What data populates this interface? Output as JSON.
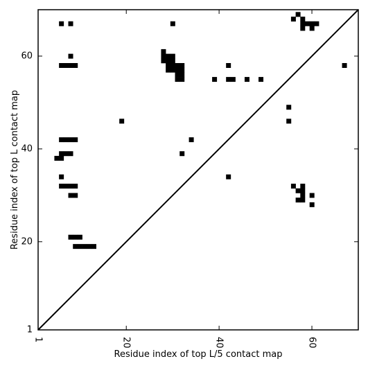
{
  "chart_data": {
    "type": "heatmap",
    "title": "",
    "xlabel": "Residue index of top L/5 contact map",
    "ylabel": "Residue index of top L contact map",
    "xlim": [
      1,
      70
    ],
    "ylim": [
      1,
      70
    ],
    "x_ticks": [
      1,
      20,
      40,
      60
    ],
    "y_ticks": [
      1,
      20,
      40,
      60
    ],
    "x_tick_labels": [
      "1",
      "20",
      "40",
      "60"
    ],
    "y_tick_labels": [
      "1",
      "20",
      "40",
      "60"
    ],
    "x_tick_rotation_deg": -90,
    "cell_color": "#000000",
    "background_color": "#ffffff",
    "diagonal": true,
    "grid": false,
    "upper_triangle_cells": [
      [
        6,
        67
      ],
      [
        8,
        67
      ],
      [
        30,
        67
      ],
      [
        8,
        60
      ],
      [
        6,
        58
      ],
      [
        7,
        58
      ],
      [
        8,
        58
      ],
      [
        9,
        58
      ],
      [
        28,
        61
      ],
      [
        28,
        60
      ],
      [
        29,
        60
      ],
      [
        30,
        60
      ],
      [
        28,
        59
      ],
      [
        29,
        59
      ],
      [
        30,
        59
      ],
      [
        29,
        58
      ],
      [
        30,
        58
      ],
      [
        31,
        58
      ],
      [
        32,
        58
      ],
      [
        29,
        57
      ],
      [
        30,
        57
      ],
      [
        31,
        57
      ],
      [
        32,
        57
      ],
      [
        31,
        56
      ],
      [
        32,
        56
      ],
      [
        31,
        55
      ],
      [
        32,
        55
      ],
      [
        42,
        58
      ],
      [
        39,
        55
      ],
      [
        42,
        55
      ],
      [
        43,
        55
      ],
      [
        46,
        55
      ],
      [
        49,
        55
      ],
      [
        67,
        58
      ]
    ],
    "lower_triangle_cells": [
      [
        57,
        69
      ],
      [
        56,
        68
      ],
      [
        58,
        68
      ],
      [
        58,
        67
      ],
      [
        59,
        67
      ],
      [
        60,
        67
      ],
      [
        61,
        67
      ],
      [
        58,
        66
      ],
      [
        60,
        66
      ],
      [
        55,
        49
      ],
      [
        55,
        46
      ],
      [
        19,
        46
      ],
      [
        34,
        42
      ],
      [
        6,
        42
      ],
      [
        7,
        42
      ],
      [
        8,
        42
      ],
      [
        9,
        42
      ],
      [
        32,
        39
      ],
      [
        6,
        39
      ],
      [
        7,
        39
      ],
      [
        8,
        39
      ],
      [
        5,
        38
      ],
      [
        6,
        38
      ],
      [
        6,
        34
      ],
      [
        42,
        34
      ],
      [
        6,
        32
      ],
      [
        7,
        32
      ],
      [
        8,
        32
      ],
      [
        9,
        32
      ],
      [
        56,
        32
      ],
      [
        58,
        32
      ],
      [
        57,
        31
      ],
      [
        58,
        31
      ],
      [
        58,
        30
      ],
      [
        60,
        30
      ],
      [
        8,
        30
      ],
      [
        9,
        30
      ],
      [
        57,
        29
      ],
      [
        58,
        29
      ],
      [
        60,
        28
      ],
      [
        8,
        21
      ],
      [
        9,
        21
      ],
      [
        10,
        21
      ],
      [
        9,
        19
      ],
      [
        10,
        19
      ],
      [
        11,
        19
      ],
      [
        12,
        19
      ],
      [
        13,
        19
      ]
    ]
  }
}
